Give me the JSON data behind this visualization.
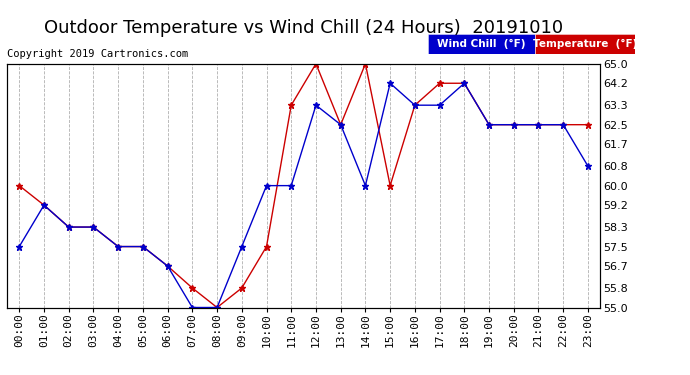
{
  "title": "Outdoor Temperature vs Wind Chill (24 Hours)  20191010",
  "copyright": "Copyright 2019 Cartronics.com",
  "background_color": "#ffffff",
  "plot_background": "#ffffff",
  "grid_color": "#b0b0b0",
  "hours": [
    "00:00",
    "01:00",
    "02:00",
    "03:00",
    "04:00",
    "05:00",
    "06:00",
    "07:00",
    "08:00",
    "09:00",
    "10:00",
    "11:00",
    "12:00",
    "13:00",
    "14:00",
    "15:00",
    "16:00",
    "17:00",
    "18:00",
    "19:00",
    "20:00",
    "21:00",
    "22:00",
    "23:00"
  ],
  "temperature": [
    60.0,
    59.2,
    58.3,
    58.3,
    57.5,
    57.5,
    56.7,
    55.8,
    55.0,
    55.8,
    57.5,
    63.3,
    65.0,
    62.5,
    65.0,
    60.0,
    63.3,
    64.2,
    64.2,
    62.5,
    62.5,
    62.5,
    62.5,
    62.5
  ],
  "wind_chill": [
    57.5,
    59.2,
    58.3,
    58.3,
    57.5,
    57.5,
    56.7,
    55.0,
    55.0,
    57.5,
    60.0,
    60.0,
    63.3,
    62.5,
    60.0,
    64.2,
    63.3,
    63.3,
    64.2,
    62.5,
    62.5,
    62.5,
    62.5,
    60.8
  ],
  "temp_color": "#cc0000",
  "wind_chill_color": "#0000cc",
  "ylim_min": 55.0,
  "ylim_max": 65.0,
  "yticks": [
    55.0,
    55.8,
    56.7,
    57.5,
    58.3,
    59.2,
    60.0,
    60.8,
    61.7,
    62.5,
    63.3,
    64.2,
    65.0
  ],
  "legend_wind_chill_bg": "#0000cc",
  "legend_temp_bg": "#cc0000",
  "title_fontsize": 13,
  "tick_fontsize": 8,
  "copyright_fontsize": 7.5
}
